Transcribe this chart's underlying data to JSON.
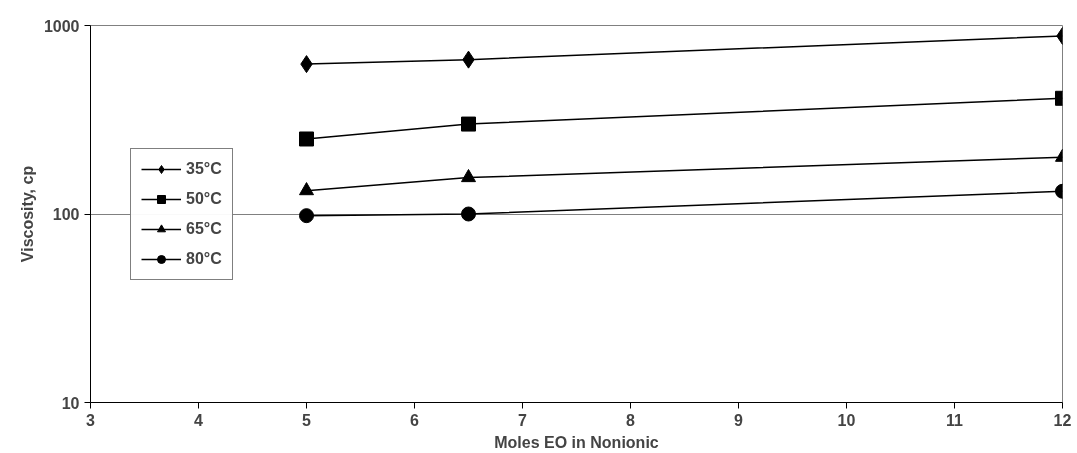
{
  "chart_data": {
    "type": "line",
    "xlabel": "Moles EO in Nonionic",
    "ylabel": "Viscosity, cp",
    "log": "y",
    "x": [
      5,
      6.5,
      12
    ],
    "series": [
      {
        "name": "35°C",
        "color": "#000000",
        "marker": "diamond",
        "values": [
          624,
          659,
          880
        ]
      },
      {
        "name": "50°C",
        "color": "#000000",
        "marker": "square",
        "values": [
          250,
          300,
          411
        ]
      },
      {
        "name": "65°C",
        "color": "#000000",
        "marker": "triangle",
        "values": [
          133,
          156,
          200
        ]
      },
      {
        "name": "80°C",
        "color": "#000000",
        "marker": "circle",
        "values": [
          98,
          100,
          132
        ]
      }
    ],
    "xlim": [
      3,
      12
    ],
    "xticks": [
      3,
      4,
      5,
      6,
      7,
      8,
      9,
      10,
      11,
      12
    ],
    "ylim": [
      10,
      1000
    ],
    "yticks": [
      10,
      100,
      1000
    ],
    "grid": "y",
    "legend": "left",
    "line_style": "solid"
  }
}
